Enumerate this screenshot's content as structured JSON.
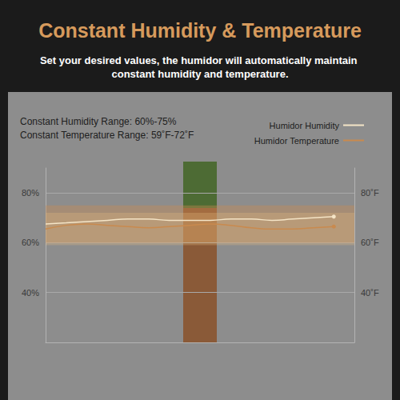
{
  "chart_data": {
    "type": "line",
    "title": "Constant Humidity & Temperature",
    "subtitle": "Set your desired values, the humidor will automatically maintain constant humidity and temperature.",
    "annotations": [
      "Constant Humidity Range: 60%-75%",
      "Constant Temperature Range: 59˚F-72˚F"
    ],
    "categories": [
      null,
      null,
      null,
      null,
      null,
      null,
      null,
      null,
      null,
      null,
      null,
      null,
      null,
      null,
      null,
      null
    ],
    "series": [
      {
        "name": "Humidor Humidity",
        "color": "#f4e4c6",
        "range": [
          60,
          75
        ],
        "values": [
          67.5,
          68,
          68.5,
          69,
          69.5,
          69.5,
          69,
          69,
          69,
          69.5,
          69.5,
          69,
          69.5,
          70,
          70.5,
          null
        ]
      },
      {
        "name": "Humidor Temperature",
        "color": "#c98a4e",
        "axis": "y2",
        "range": [
          59,
          72
        ],
        "values": [
          65.5,
          67,
          67.5,
          67,
          66.5,
          66,
          66.5,
          67,
          67.5,
          67,
          66,
          65.5,
          65.5,
          66,
          66.5,
          null
        ]
      }
    ],
    "ylim": [
      20,
      90
    ],
    "yticks": [
      {
        "value": 40,
        "label": "40%"
      },
      {
        "value": 60,
        "label": "60%"
      },
      {
        "value": 80,
        "label": "80%"
      }
    ],
    "y2lim": [
      20,
      90
    ],
    "y2ticks": [
      {
        "value": 40,
        "label": "40˚F"
      },
      {
        "value": 60,
        "label": "60˚F"
      },
      {
        "value": 80,
        "label": "80˚F"
      }
    ],
    "grid": true,
    "legend": "top-right"
  }
}
